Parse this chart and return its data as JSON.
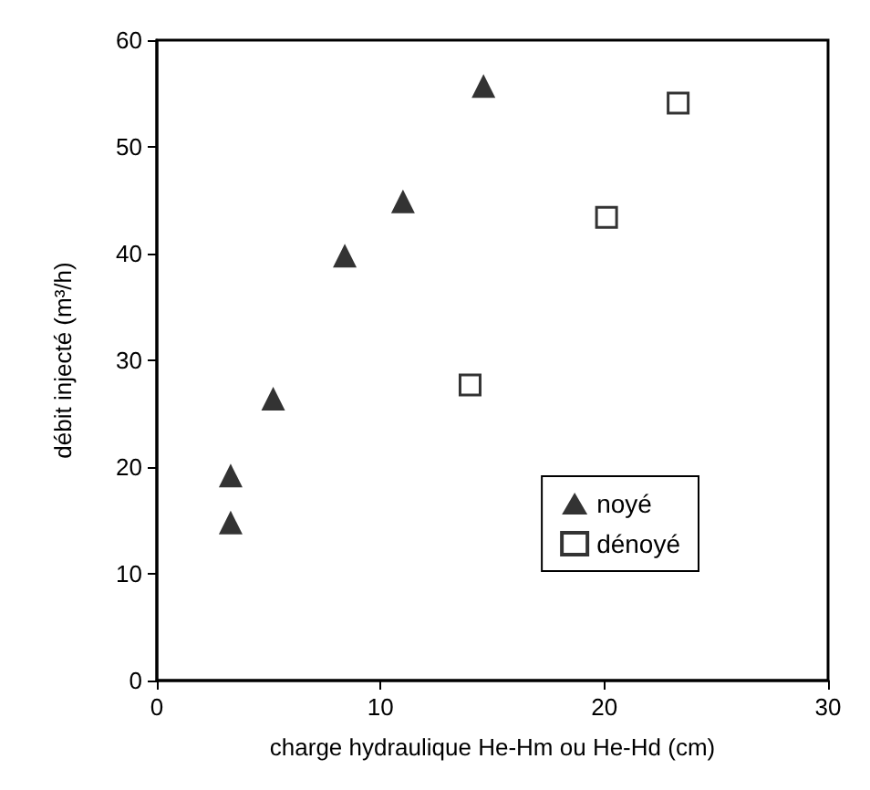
{
  "chart_data": {
    "type": "scatter",
    "xlabel": "charge hydraulique He-Hm ou He-Hd (cm)",
    "ylabel": "débit injecté (m³/h)",
    "series": [
      {
        "name": "noyé",
        "color": "#000000",
        "marker": "triangle",
        "x": [
          3.3,
          3.3,
          5.2,
          8.4,
          11.0,
          14.6
        ],
        "values": [
          14.8,
          19.2,
          26.4,
          39.8,
          44.9,
          55.7
        ]
      },
      {
        "name": "dénoyé",
        "color": "#000000",
        "marker": "square",
        "x": [
          14.0,
          20.1,
          23.3
        ],
        "values": [
          27.7,
          43.4,
          54.1
        ]
      }
    ],
    "xlim": [
      0,
      30
    ],
    "xticks": [
      0,
      10,
      20,
      30
    ],
    "ylim": [
      0,
      60
    ],
    "yticks": [
      0,
      10,
      20,
      30,
      40,
      50,
      60
    ],
    "grid": false,
    "legend": "bottom right"
  }
}
